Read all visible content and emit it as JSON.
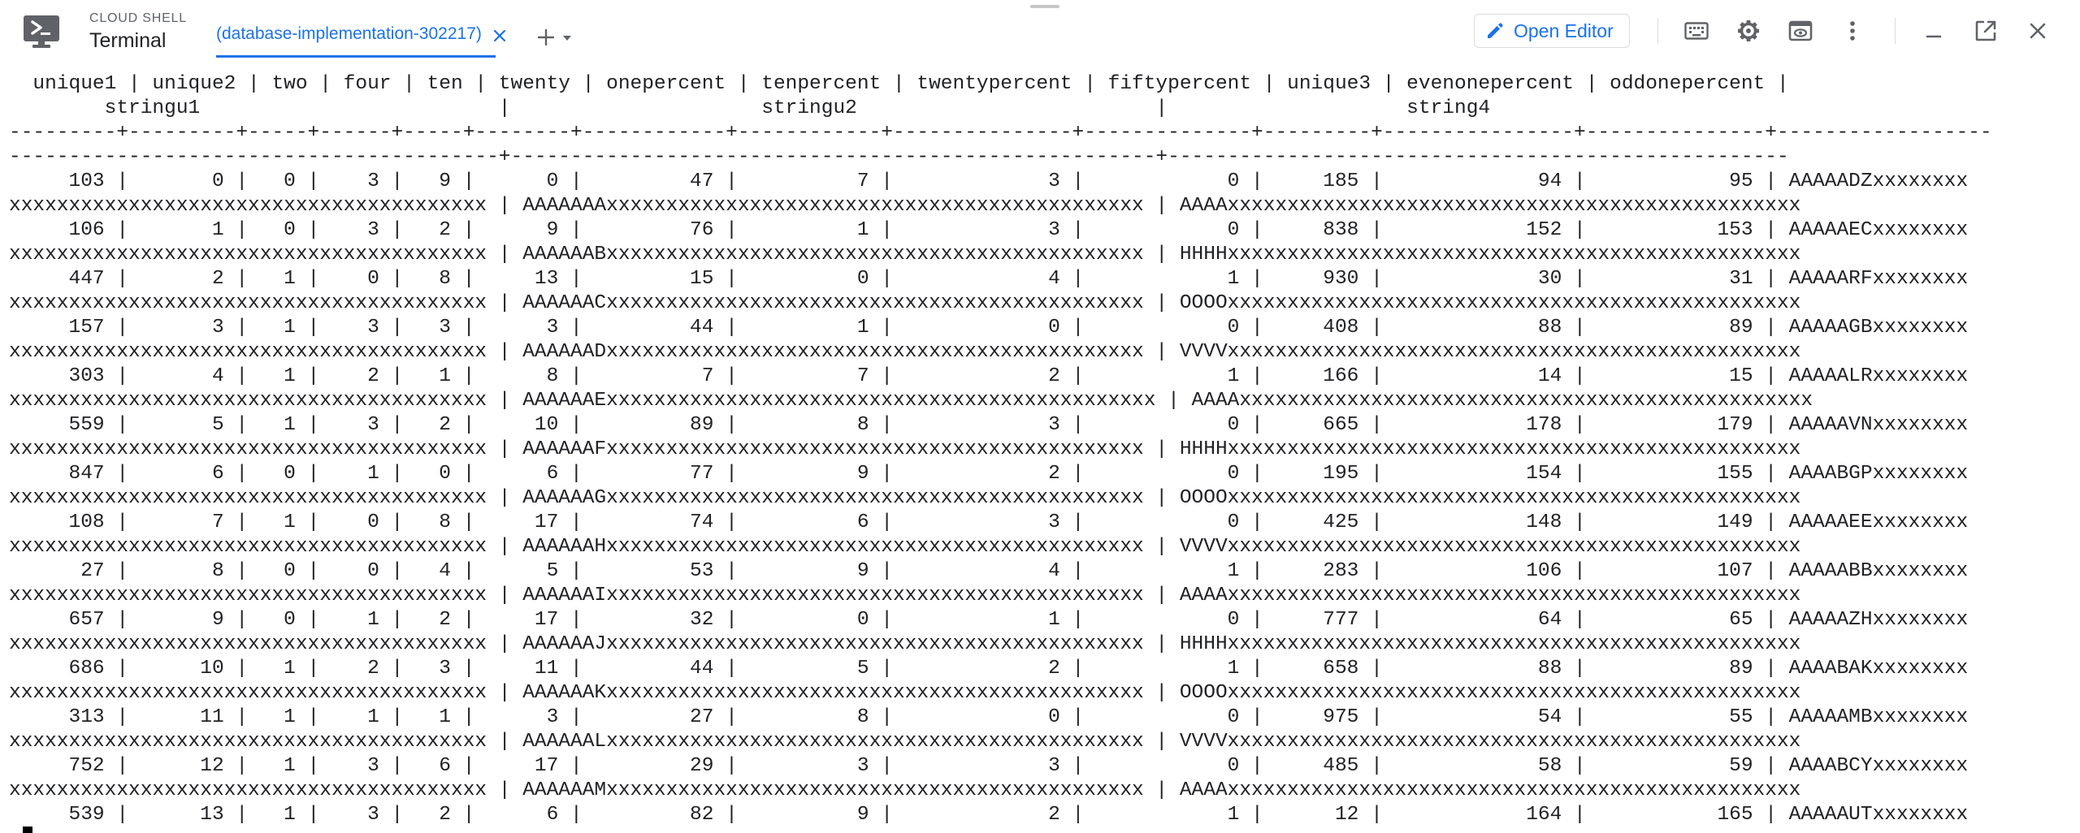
{
  "header": {
    "product_label": "CLOUD SHELL",
    "window_title": "Terminal",
    "tab_label": "(database-implementation-302217)",
    "open_editor_label": "Open Editor",
    "accent_color": "#1a73e8"
  },
  "icons": {
    "logo": "cloud-shell-terminal-icon",
    "tab_close": "close-icon",
    "add_tab": "plus-icon",
    "add_tab_menu": "caret-down-icon",
    "open_editor": "pencil-icon",
    "keyboard": "keyboard-icon",
    "settings": "gear-icon",
    "preview": "web-preview-icon",
    "more": "more-vert-icon",
    "minimize": "minimize-icon",
    "open_new_window": "open-in-new-icon",
    "close": "close-icon"
  },
  "terminal": {
    "lines": [
      "  unique1 | unique2 | two | four | ten | twenty | onepercent | tenpercent | twentypercent | fiftypercent | unique3 | evenonepercent | oddonepercent |",
      "        stringu1                         |                     stringu2                         |                    string4",
      "---------+---------+-----+------+-----+--------+------------+------------+---------------+--------------+---------+----------------+---------------+------------------",
      "-----------------------------------------+------------------------------------------------------+----------------------------------------------------",
      "     103 |       0 |   0 |    3 |   9 |      0 |         47 |          7 |             3 |            0 |     185 |             94 |            95 | AAAAADZxxxxxxxx",
      "xxxxxxxxxxxxxxxxxxxxxxxxxxxxxxxxxxxxxxxx | AAAAAAAxxxxxxxxxxxxxxxxxxxxxxxxxxxxxxxxxxxxxxxxxxxxx | AAAAxxxxxxxxxxxxxxxxxxxxxxxxxxxxxxxxxxxxxxxxxxxxxxxx",
      "     106 |       1 |   0 |    3 |   2 |      9 |         76 |          1 |             3 |            0 |     838 |            152 |           153 | AAAAAECxxxxxxxx",
      "xxxxxxxxxxxxxxxxxxxxxxxxxxxxxxxxxxxxxxxx | AAAAAABxxxxxxxxxxxxxxxxxxxxxxxxxxxxxxxxxxxxxxxxxxxxx | HHHHxxxxxxxxxxxxxxxxxxxxxxxxxxxxxxxxxxxxxxxxxxxxxxxx",
      "     447 |       2 |   1 |    0 |   8 |     13 |         15 |          0 |             4 |            1 |     930 |             30 |            31 | AAAAARFxxxxxxxx",
      "xxxxxxxxxxxxxxxxxxxxxxxxxxxxxxxxxxxxxxxx | AAAAAACxxxxxxxxxxxxxxxxxxxxxxxxxxxxxxxxxxxxxxxxxxxxx | OOOOxxxxxxxxxxxxxxxxxxxxxxxxxxxxxxxxxxxxxxxxxxxxxxxx",
      "     157 |       3 |   1 |    3 |   3 |      3 |         44 |          1 |             0 |            0 |     408 |             88 |            89 | AAAAAGBxxxxxxxx",
      "xxxxxxxxxxxxxxxxxxxxxxxxxxxxxxxxxxxxxxxx | AAAAAADxxxxxxxxxxxxxxxxxxxxxxxxxxxxxxxxxxxxxxxxxxxxx | VVVVxxxxxxxxxxxxxxxxxxxxxxxxxxxxxxxxxxxxxxxxxxxxxxxx",
      "     303 |       4 |   1 |    2 |   1 |      8 |          7 |          7 |             2 |            1 |     166 |             14 |            15 | AAAAALRxxxxxxxx",
      "xxxxxxxxxxxxxxxxxxxxxxxxxxxxxxxxxxxxxxxx | AAAAAAExxxxxxxxxxxxxxxxxxxxxxxxxxxxxxxxxxxxxxxxxxxxxx | AAAAxxxxxxxxxxxxxxxxxxxxxxxxxxxxxxxxxxxxxxxxxxxxxxxx",
      "     559 |       5 |   1 |    3 |   2 |     10 |         89 |          8 |             3 |            0 |     665 |            178 |           179 | AAAAAVNxxxxxxxx",
      "xxxxxxxxxxxxxxxxxxxxxxxxxxxxxxxxxxxxxxxx | AAAAAAFxxxxxxxxxxxxxxxxxxxxxxxxxxxxxxxxxxxxxxxxxxxxx | HHHHxxxxxxxxxxxxxxxxxxxxxxxxxxxxxxxxxxxxxxxxxxxxxxxx",
      "     847 |       6 |   0 |    1 |   0 |      6 |         77 |          9 |             2 |            0 |     195 |            154 |           155 | AAAABGPxxxxxxxx",
      "xxxxxxxxxxxxxxxxxxxxxxxxxxxxxxxxxxxxxxxx | AAAAAAGxxxxxxxxxxxxxxxxxxxxxxxxxxxxxxxxxxxxxxxxxxxxx | OOOOxxxxxxxxxxxxxxxxxxxxxxxxxxxxxxxxxxxxxxxxxxxxxxxx",
      "     108 |       7 |   1 |    0 |   8 |     17 |         74 |          6 |             3 |            0 |     425 |            148 |           149 | AAAAAEExxxxxxxx",
      "xxxxxxxxxxxxxxxxxxxxxxxxxxxxxxxxxxxxxxxx | AAAAAAHxxxxxxxxxxxxxxxxxxxxxxxxxxxxxxxxxxxxxxxxxxxxx | VVVVxxxxxxxxxxxxxxxxxxxxxxxxxxxxxxxxxxxxxxxxxxxxxxxx",
      "      27 |       8 |   0 |    0 |   4 |      5 |         53 |          9 |             4 |            1 |     283 |            106 |           107 | AAAAABBxxxxxxxx",
      "xxxxxxxxxxxxxxxxxxxxxxxxxxxxxxxxxxxxxxxx | AAAAAAIxxxxxxxxxxxxxxxxxxxxxxxxxxxxxxxxxxxxxxxxxxxxx | AAAAxxxxxxxxxxxxxxxxxxxxxxxxxxxxxxxxxxxxxxxxxxxxxxxx",
      "     657 |       9 |   0 |    1 |   2 |     17 |         32 |          0 |             1 |            0 |     777 |             64 |            65 | AAAAAZHxxxxxxxx",
      "xxxxxxxxxxxxxxxxxxxxxxxxxxxxxxxxxxxxxxxx | AAAAAAJxxxxxxxxxxxxxxxxxxxxxxxxxxxxxxxxxxxxxxxxxxxxx | HHHHxxxxxxxxxxxxxxxxxxxxxxxxxxxxxxxxxxxxxxxxxxxxxxxx",
      "     686 |      10 |   1 |    2 |   3 |     11 |         44 |          5 |             2 |            1 |     658 |             88 |            89 | AAAABAKxxxxxxxx",
      "xxxxxxxxxxxxxxxxxxxxxxxxxxxxxxxxxxxxxxxx | AAAAAAKxxxxxxxxxxxxxxxxxxxxxxxxxxxxxxxxxxxxxxxxxxxxx | OOOOxxxxxxxxxxxxxxxxxxxxxxxxxxxxxxxxxxxxxxxxxxxxxxxx",
      "     313 |      11 |   1 |    1 |   1 |      3 |         27 |          8 |             0 |            0 |     975 |             54 |            55 | AAAAAMBxxxxxxxx",
      "xxxxxxxxxxxxxxxxxxxxxxxxxxxxxxxxxxxxxxxx | AAAAAALxxxxxxxxxxxxxxxxxxxxxxxxxxxxxxxxxxxxxxxxxxxxx | VVVVxxxxxxxxxxxxxxxxxxxxxxxxxxxxxxxxxxxxxxxxxxxxxxxx",
      "     752 |      12 |   1 |    3 |   6 |     17 |         29 |          3 |             3 |            0 |     485 |             58 |            59 | AAAABCYxxxxxxxx",
      "xxxxxxxxxxxxxxxxxxxxxxxxxxxxxxxxxxxxxxxx | AAAAAAMxxxxxxxxxxxxxxxxxxxxxxxxxxxxxxxxxxxxxxxxxxxxx | AAAAxxxxxxxxxxxxxxxxxxxxxxxxxxxxxxxxxxxxxxxxxxxxxxxx",
      "     539 |      13 |   1 |    3 |   2 |      6 |         82 |          9 |             2 |            1 |      12 |            164 |           165 | AAAAAUTxxxxxxxx"
    ]
  }
}
